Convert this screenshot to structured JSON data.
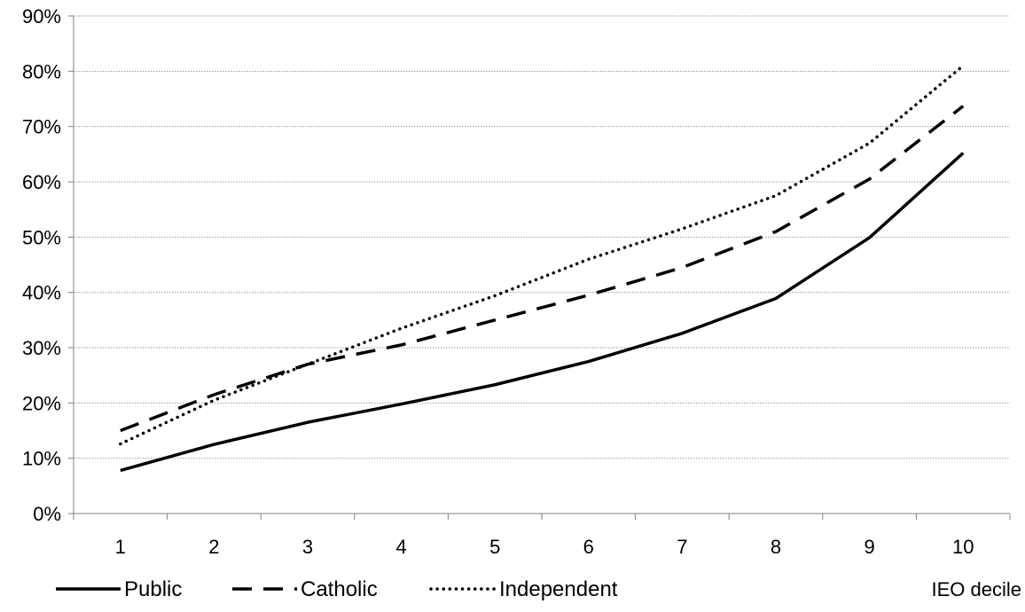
{
  "chart_data": {
    "type": "line",
    "title": "",
    "xlabel": "IEO decile",
    "ylabel": "",
    "categories": [
      "1",
      "2",
      "3",
      "4",
      "5",
      "6",
      "7",
      "8",
      "9",
      "10"
    ],
    "ylim": [
      0,
      90
    ],
    "yticks": [
      "0%",
      "10%",
      "20%",
      "30%",
      "40%",
      "50%",
      "60%",
      "70%",
      "80%",
      "90%"
    ],
    "ytick_values": [
      0,
      10,
      20,
      30,
      40,
      50,
      60,
      70,
      80,
      90
    ],
    "grid": true,
    "legend_position": "bottom-left",
    "series": [
      {
        "name": "Public",
        "style": "solid",
        "color": "#000000",
        "values": [
          7.8,
          12.5,
          16.5,
          19.8,
          23.3,
          27.5,
          32.6,
          38.9,
          49.9,
          65.2
        ]
      },
      {
        "name": "Catholic",
        "style": "dashed",
        "color": "#000000",
        "values": [
          15.0,
          21.5,
          27.0,
          30.5,
          35.0,
          39.5,
          44.5,
          51.0,
          60.5,
          73.7
        ]
      },
      {
        "name": "Independent",
        "style": "dotted",
        "color": "#000000",
        "values": [
          12.6,
          20.5,
          27.0,
          33.5,
          39.4,
          46.0,
          51.5,
          57.5,
          67.0,
          81.0
        ]
      }
    ]
  },
  "colors": {
    "line": "#000000",
    "grid": "#9a9a9a",
    "axis": "#7f7f7f"
  }
}
